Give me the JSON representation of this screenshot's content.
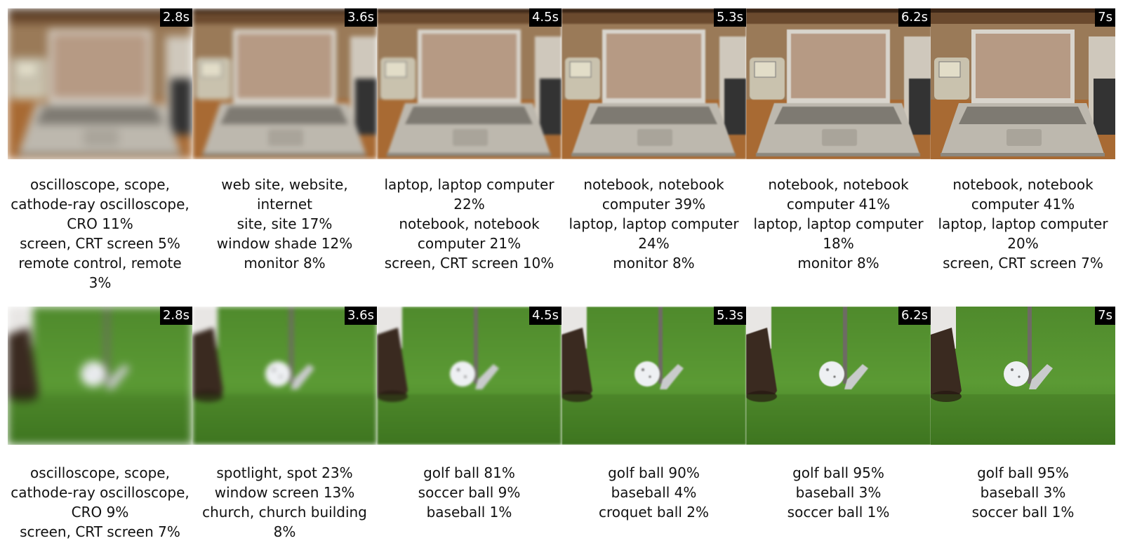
{
  "rows": [
    {
      "subject": "laptop",
      "frames": [
        {
          "time": "2.8s",
          "predictions": [
            "oscilloscope, scope,\ncathode-ray oscilloscope,\nCRO 11%",
            "screen, CRT screen 5%",
            "remote control, remote 3%"
          ]
        },
        {
          "time": "3.6s",
          "predictions": [
            "web site, website, internet\nsite, site 17%",
            "window shade 12%",
            "monitor 8%"
          ]
        },
        {
          "time": "4.5s",
          "predictions": [
            "laptop, laptop computer\n22%",
            "notebook, notebook\ncomputer 21%",
            "screen, CRT screen 10%"
          ]
        },
        {
          "time": "5.3s",
          "predictions": [
            "notebook, notebook\ncomputer 39%",
            "laptop, laptop computer\n24%",
            "monitor 8%"
          ]
        },
        {
          "time": "6.2s",
          "predictions": [
            "notebook, notebook\ncomputer 41%",
            "laptop, laptop computer\n18%",
            "monitor 8%"
          ]
        },
        {
          "time": "7s",
          "predictions": [
            "notebook, notebook\ncomputer 41%",
            "laptop, laptop computer\n20%",
            "screen, CRT screen 7%"
          ]
        }
      ]
    },
    {
      "subject": "golf",
      "frames": [
        {
          "time": "2.8s",
          "predictions": [
            "oscilloscope, scope,\ncathode-ray oscilloscope,\nCRO 9%",
            "screen, CRT screen 7%"
          ]
        },
        {
          "time": "3.6s",
          "predictions": [
            "spotlight, spot 23%",
            "window screen 13%",
            "church, church building\n8%"
          ]
        },
        {
          "time": "4.5s",
          "predictions": [
            "golf ball 81%",
            "soccer ball 9%",
            "baseball 1%"
          ]
        },
        {
          "time": "5.3s",
          "predictions": [
            "golf ball 90%",
            "baseball 4%",
            "croquet ball 2%"
          ]
        },
        {
          "time": "6.2s",
          "predictions": [
            "golf ball 95%",
            "baseball 3%",
            "soccer ball 1%"
          ]
        },
        {
          "time": "7s",
          "predictions": [
            "golf ball 95%",
            "baseball 3%",
            "soccer ball 1%"
          ]
        }
      ]
    }
  ],
  "blur_levels": [
    6,
    3.5,
    1.8,
    1,
    0.5,
    0
  ]
}
